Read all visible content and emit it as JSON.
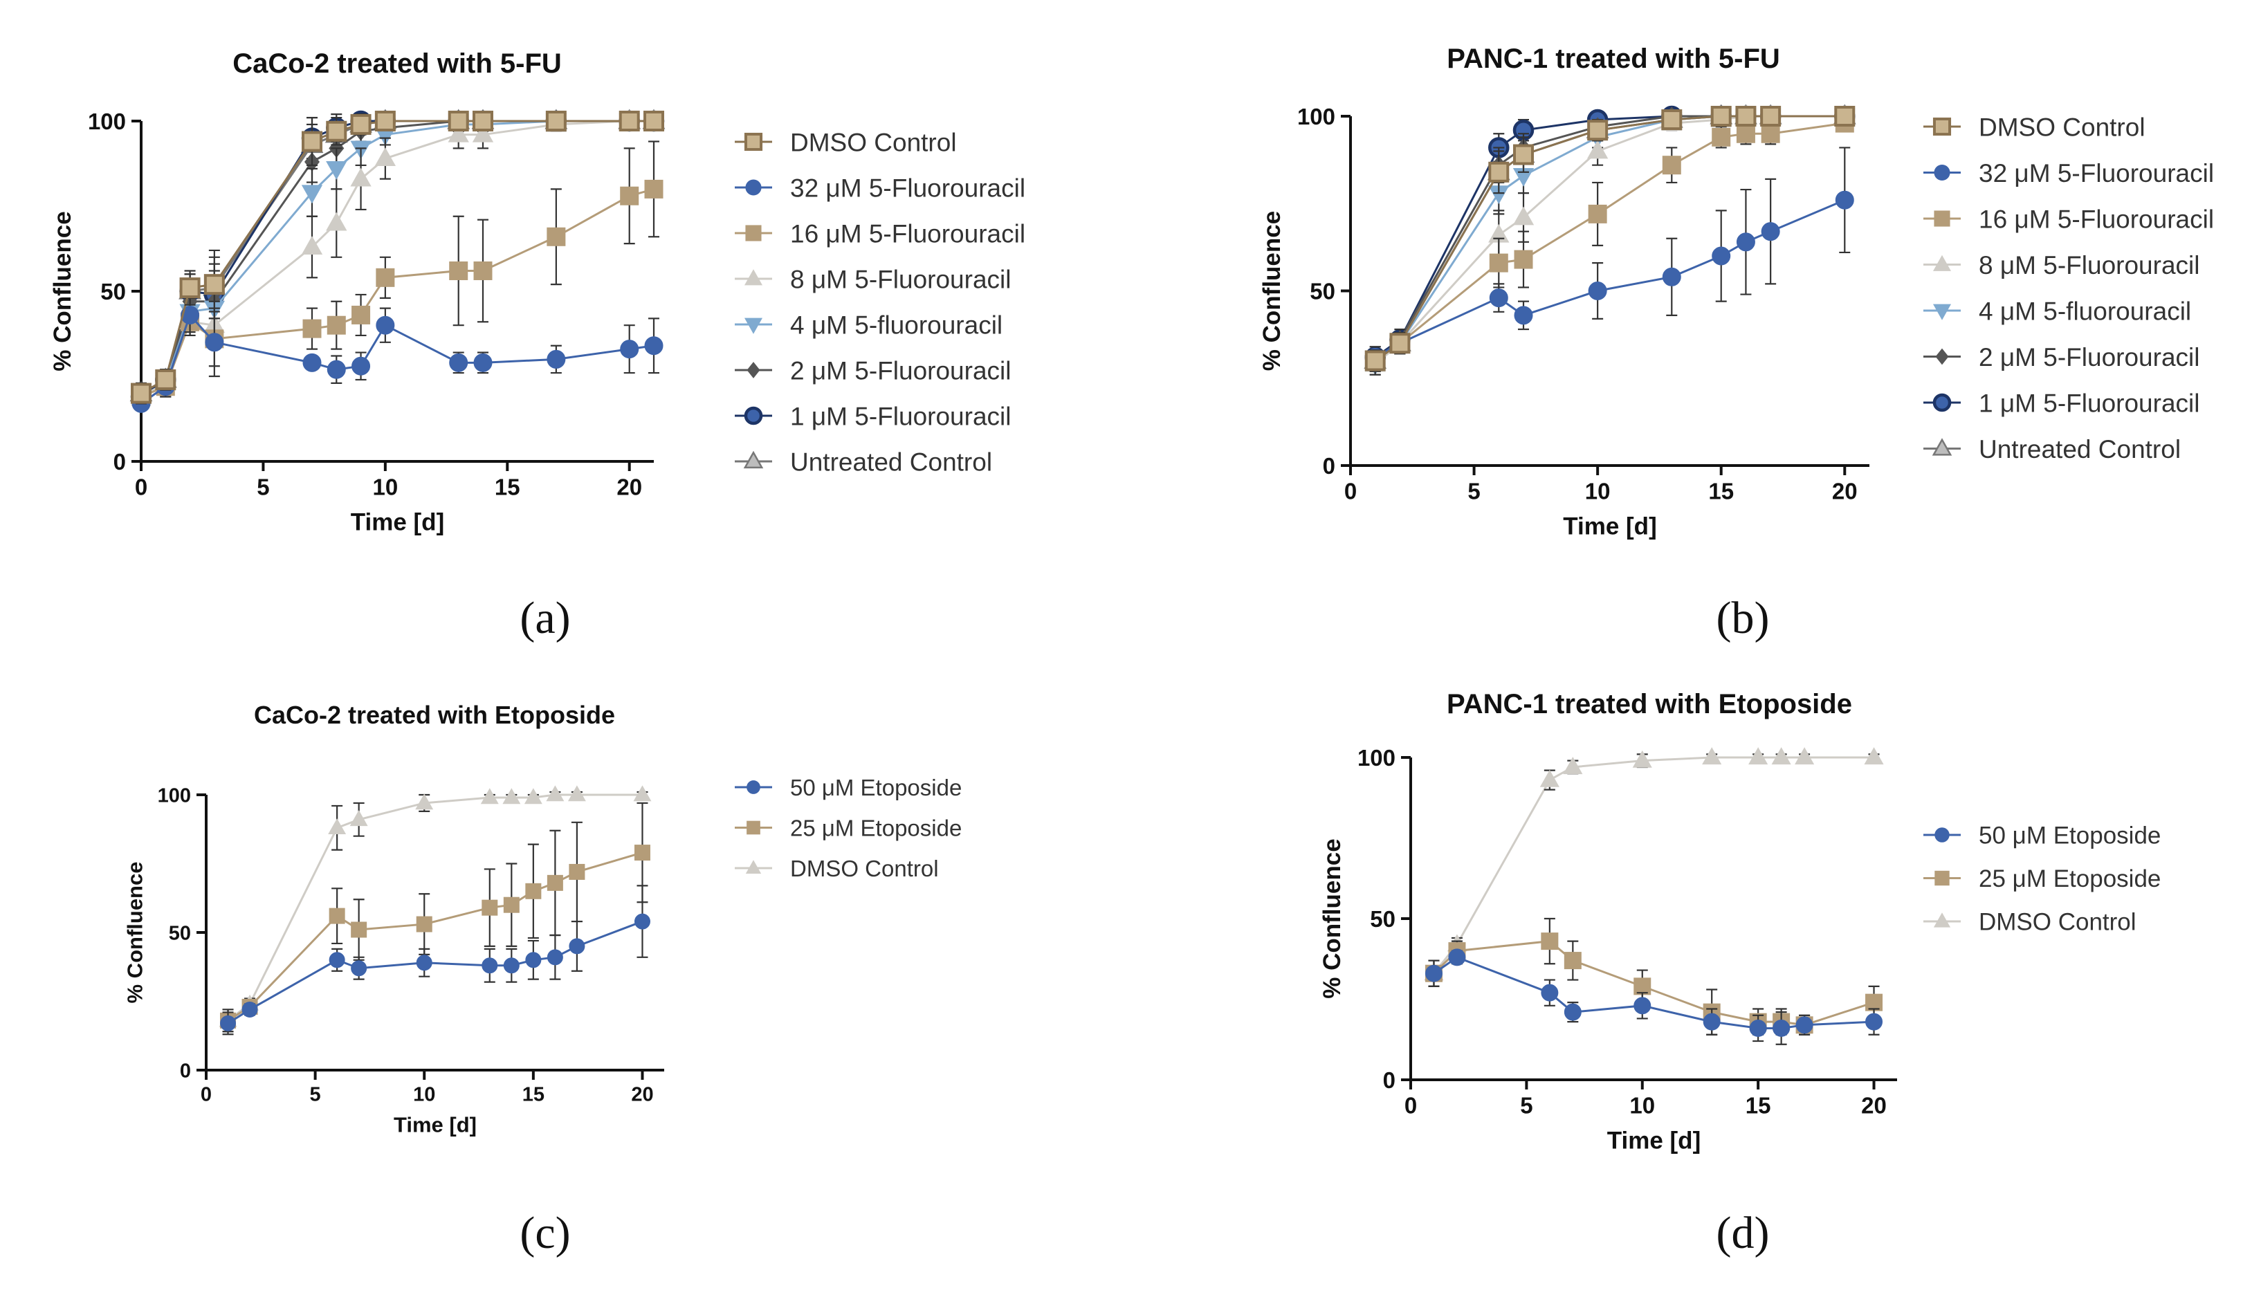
{
  "chart_data": [
    {
      "type": "line",
      "title": "CaCo-2 treated with 5-FU",
      "caption": "(a)",
      "xlabel": "Time [d]",
      "ylabel": "% Confluence",
      "xlim": [
        0,
        21
      ],
      "ylim": [
        0,
        100
      ],
      "xticks": [
        0,
        5,
        10,
        15,
        20
      ],
      "yticks": [
        0,
        50,
        100
      ],
      "xtick_labels": [
        "0",
        "5",
        "10",
        "15",
        "20"
      ],
      "ytick_labels": [
        "0",
        "50",
        "100"
      ],
      "legend_position": "right",
      "series": [
        {
          "name": "DMSO Control",
          "color": "#8b7350",
          "marker": "square-open",
          "x": [
            0,
            1,
            2,
            3,
            7,
            8,
            9,
            10,
            13,
            14,
            17,
            20,
            21
          ],
          "y": [
            20,
            24,
            51,
            52,
            94,
            97,
            99,
            100,
            100,
            100,
            100,
            100,
            100
          ],
          "err": [
            3,
            3,
            5,
            10,
            7,
            4,
            3,
            2,
            1,
            1,
            1,
            1,
            1
          ]
        },
        {
          "name": "32 μM 5-Fluorouracil",
          "color": "#3d63aa",
          "marker": "circle",
          "x": [
            0,
            1,
            2,
            3,
            7,
            8,
            9,
            10,
            13,
            14,
            17,
            20,
            21
          ],
          "y": [
            17,
            22,
            43,
            35,
            29,
            27,
            28,
            40,
            29,
            29,
            30,
            33,
            34
          ],
          "err": [
            2,
            3,
            5,
            10,
            2,
            4,
            4,
            5,
            3,
            3,
            4,
            7,
            8
          ]
        },
        {
          "name": "16 μM 5-Fluorouracil",
          "color": "#b49c78",
          "marker": "square",
          "x": [
            0,
            1,
            2,
            3,
            7,
            8,
            9,
            10,
            13,
            14,
            17,
            20,
            21
          ],
          "y": [
            19,
            22,
            41,
            36,
            39,
            40,
            43,
            54,
            56,
            56,
            66,
            78,
            80
          ],
          "err": [
            2,
            3,
            4,
            8,
            6,
            7,
            6,
            6,
            16,
            15,
            14,
            14,
            14
          ]
        },
        {
          "name": "8 μM 5-Fluorouracil",
          "color": "#cfccc6",
          "marker": "triangle",
          "x": [
            0,
            1,
            2,
            3,
            7,
            8,
            9,
            10,
            13,
            14,
            17,
            20,
            21
          ],
          "y": [
            19,
            23,
            41,
            40,
            63,
            70,
            83,
            89,
            96,
            96,
            99,
            100,
            100
          ],
          "err": [
            2,
            3,
            4,
            7,
            9,
            10,
            9,
            6,
            4,
            4,
            2,
            1,
            1
          ]
        },
        {
          "name": "4 μM 5-fluorouracil",
          "color": "#7faad0",
          "marker": "triangle-down",
          "x": [
            0,
            1,
            2,
            3,
            7,
            8,
            9,
            10,
            13,
            14,
            17,
            20,
            21
          ],
          "y": [
            19,
            23,
            44,
            45,
            79,
            86,
            92,
            96,
            99,
            99,
            100,
            100,
            100
          ],
          "err": [
            2,
            3,
            4,
            8,
            7,
            6,
            5,
            3,
            2,
            2,
            1,
            1,
            1
          ]
        },
        {
          "name": "2 μM 5-Fluorouracil",
          "color": "#555555",
          "marker": "diamond",
          "x": [
            0,
            1,
            2,
            3,
            7,
            8,
            9,
            10,
            13,
            14,
            17,
            20,
            21
          ],
          "y": [
            19,
            23,
            47,
            47,
            88,
            92,
            97,
            98,
            100,
            100,
            100,
            100,
            100
          ],
          "err": [
            2,
            3,
            5,
            9,
            6,
            5,
            3,
            2,
            1,
            1,
            1,
            1,
            1
          ]
        },
        {
          "name": "1 μM 5-Fluorouracil",
          "color": "#1d3466",
          "marker": "circle-open",
          "x": [
            0,
            1,
            2,
            3,
            7,
            8,
            9,
            10,
            13,
            14,
            17,
            20,
            21
          ],
          "y": [
            19,
            24,
            50,
            49,
            95,
            98,
            100,
            100,
            100,
            100,
            100,
            100,
            100
          ],
          "err": [
            2,
            3,
            5,
            9,
            6,
            4,
            2,
            1,
            1,
            1,
            1,
            1,
            1
          ]
        },
        {
          "name": "Untreated Control",
          "color": "#777777",
          "marker": "triangle-open",
          "x": [
            0,
            1,
            2,
            3,
            7,
            8,
            9,
            10,
            13,
            14,
            17,
            20,
            21
          ],
          "y": [
            20,
            24,
            50,
            51,
            93,
            96,
            99,
            100,
            100,
            100,
            100,
            100,
            100
          ],
          "err": [
            2,
            3,
            5,
            9,
            6,
            4,
            2,
            1,
            1,
            1,
            1,
            1,
            1
          ]
        }
      ]
    },
    {
      "type": "line",
      "title": "PANC-1 treated with 5-FU",
      "caption": "(b)",
      "xlabel": "Time [d]",
      "ylabel": "% Confluence",
      "xlim": [
        0,
        21
      ],
      "ylim": [
        0,
        100
      ],
      "xticks": [
        0,
        5,
        10,
        15,
        20
      ],
      "yticks": [
        0,
        50,
        100
      ],
      "xtick_labels": [
        "0",
        "5",
        "10",
        "15",
        "20"
      ],
      "ytick_labels": [
        "0",
        "50",
        "100"
      ],
      "legend_position": "right",
      "series": [
        {
          "name": "DMSO Control",
          "color": "#8b7350",
          "marker": "square-open",
          "x": [
            1,
            2,
            6,
            7,
            10,
            13,
            15,
            16,
            17,
            20
          ],
          "y": [
            30,
            35,
            84,
            89,
            96,
            99,
            100,
            100,
            100,
            100
          ],
          "err": [
            3,
            3,
            6,
            5,
            3,
            1,
            1,
            1,
            1,
            1
          ]
        },
        {
          "name": "32 μM 5-Fluorouracil",
          "color": "#3d63aa",
          "marker": "circle",
          "x": [
            1,
            2,
            6,
            7,
            10,
            13,
            15,
            16,
            17,
            20
          ],
          "y": [
            31,
            35,
            48,
            43,
            50,
            54,
            60,
            64,
            67,
            76
          ],
          "err": [
            3,
            3,
            4,
            4,
            8,
            11,
            13,
            15,
            15,
            15
          ]
        },
        {
          "name": "16 μM 5-Fluorouracil",
          "color": "#b49c78",
          "marker": "square",
          "x": [
            1,
            2,
            6,
            7,
            10,
            13,
            15,
            16,
            17,
            20
          ],
          "y": [
            30,
            35,
            58,
            59,
            72,
            86,
            94,
            95,
            95,
            98
          ],
          "err": [
            3,
            3,
            7,
            8,
            9,
            5,
            3,
            3,
            3,
            2
          ]
        },
        {
          "name": "8 μM 5-Fluorouracil",
          "color": "#cfccc6",
          "marker": "triangle",
          "x": [
            1,
            2,
            6,
            7,
            10,
            13,
            15,
            16,
            17,
            20
          ],
          "y": [
            29,
            35,
            66,
            71,
            90,
            98,
            99,
            100,
            100,
            100
          ],
          "err": [
            3,
            3,
            7,
            7,
            4,
            2,
            1,
            1,
            1,
            1
          ]
        },
        {
          "name": "4 μM 5-fluorouracil",
          "color": "#7faad0",
          "marker": "triangle-down",
          "x": [
            1,
            2,
            6,
            7,
            10,
            13,
            15,
            16,
            17,
            20
          ],
          "y": [
            29,
            35,
            78,
            83,
            94,
            99,
            100,
            100,
            100,
            100
          ],
          "err": [
            3,
            3,
            6,
            5,
            3,
            1,
            1,
            1,
            1,
            1
          ]
        },
        {
          "name": "2 μM 5-Fluorouracil",
          "color": "#555555",
          "marker": "diamond",
          "x": [
            1,
            2,
            6,
            7,
            10,
            13,
            15,
            16,
            17,
            20
          ],
          "y": [
            30,
            36,
            86,
            91,
            97,
            100,
            100,
            100,
            100,
            100
          ],
          "err": [
            3,
            3,
            5,
            4,
            2,
            1,
            1,
            1,
            1,
            1
          ]
        },
        {
          "name": "1 μM 5-Fluorouracil",
          "color": "#1d3466",
          "marker": "circle-open",
          "x": [
            1,
            2,
            6,
            7,
            10,
            13,
            15,
            16,
            17,
            20
          ],
          "y": [
            31,
            36,
            91,
            96,
            99,
            100,
            100,
            100,
            100,
            100
          ],
          "err": [
            3,
            3,
            4,
            3,
            1,
            1,
            1,
            1,
            1,
            1
          ]
        },
        {
          "name": "Untreated Control",
          "color": "#777777",
          "marker": "triangle-open",
          "x": [
            1,
            2,
            6,
            7,
            10,
            13,
            15,
            16,
            17,
            20
          ],
          "y": [
            30,
            35,
            84,
            89,
            96,
            99,
            100,
            100,
            100,
            100
          ],
          "err": [
            3,
            3,
            6,
            5,
            3,
            1,
            1,
            1,
            1,
            1
          ]
        }
      ]
    },
    {
      "type": "line",
      "title": "CaCo-2 treated with Etoposide",
      "caption": "(c)",
      "xlabel": "Time [d]",
      "ylabel": "% Confluence",
      "xlim": [
        0,
        21
      ],
      "ylim": [
        0,
        100
      ],
      "xticks": [
        0,
        5,
        10,
        15,
        20
      ],
      "yticks": [
        0,
        50,
        100
      ],
      "xtick_labels": [
        "0",
        "5",
        "10",
        "15",
        "20"
      ],
      "ytick_labels": [
        "0",
        "50",
        "100"
      ],
      "legend_position": "right",
      "series": [
        {
          "name": "50 μM Etoposide",
          "color": "#3d63aa",
          "marker": "circle",
          "x": [
            1,
            2,
            6,
            7,
            10,
            13,
            14,
            15,
            16,
            17,
            20
          ],
          "y": [
            17,
            22,
            40,
            37,
            39,
            38,
            38,
            40,
            41,
            45,
            54
          ],
          "err": [
            4,
            2,
            4,
            4,
            5,
            6,
            6,
            7,
            8,
            9,
            13
          ]
        },
        {
          "name": "25 μM Etoposide",
          "color": "#b49c78",
          "marker": "square",
          "x": [
            1,
            2,
            6,
            7,
            10,
            13,
            14,
            15,
            16,
            17,
            20
          ],
          "y": [
            18,
            23,
            56,
            51,
            53,
            59,
            60,
            65,
            68,
            72,
            79
          ],
          "err": [
            4,
            2,
            10,
            11,
            11,
            14,
            15,
            17,
            19,
            18,
            18
          ]
        },
        {
          "name": "DMSO Control",
          "color": "#cfccc6",
          "marker": "triangle",
          "x": [
            1,
            2,
            6,
            7,
            10,
            13,
            14,
            15,
            16,
            17,
            20
          ],
          "y": [
            18,
            24,
            88,
            91,
            97,
            99,
            99,
            99,
            100,
            100,
            100
          ],
          "err": [
            4,
            2,
            8,
            6,
            3,
            1,
            1,
            1,
            1,
            1,
            1
          ]
        }
      ]
    },
    {
      "type": "line",
      "title": "PANC-1 treated with Etoposide",
      "caption": "(d)",
      "xlabel": "Time [d]",
      "ylabel": "% Confluence",
      "xlim": [
        0,
        21
      ],
      "ylim": [
        0,
        100
      ],
      "xticks": [
        0,
        5,
        10,
        15,
        20
      ],
      "yticks": [
        0,
        50,
        100
      ],
      "xtick_labels": [
        "0",
        "5",
        "10",
        "15",
        "20"
      ],
      "ytick_labels": [
        "0",
        "50",
        "100"
      ],
      "legend_position": "right",
      "series": [
        {
          "name": "50 μM Etoposide",
          "color": "#3d63aa",
          "marker": "circle",
          "x": [
            1,
            2,
            6,
            7,
            10,
            13,
            15,
            16,
            17,
            20
          ],
          "y": [
            33,
            38,
            27,
            21,
            23,
            18,
            16,
            16,
            17,
            18
          ],
          "err": [
            4,
            2,
            4,
            3,
            4,
            4,
            4,
            5,
            3,
            4
          ]
        },
        {
          "name": "25 μM Etoposide",
          "color": "#b49c78",
          "marker": "square",
          "x": [
            1,
            2,
            6,
            7,
            10,
            13,
            15,
            16,
            17,
            20
          ],
          "y": [
            33,
            40,
            43,
            37,
            29,
            21,
            18,
            18,
            17,
            24
          ],
          "err": [
            4,
            3,
            7,
            6,
            5,
            7,
            4,
            4,
            3,
            5
          ]
        },
        {
          "name": "DMSO Control",
          "color": "#cfccc6",
          "marker": "triangle",
          "x": [
            1,
            2,
            6,
            7,
            10,
            13,
            15,
            16,
            17,
            20
          ],
          "y": [
            33,
            42,
            93,
            97,
            99,
            100,
            100,
            100,
            100,
            100
          ],
          "err": [
            4,
            2,
            3,
            2,
            2,
            1,
            1,
            1,
            1,
            1
          ]
        }
      ]
    }
  ]
}
